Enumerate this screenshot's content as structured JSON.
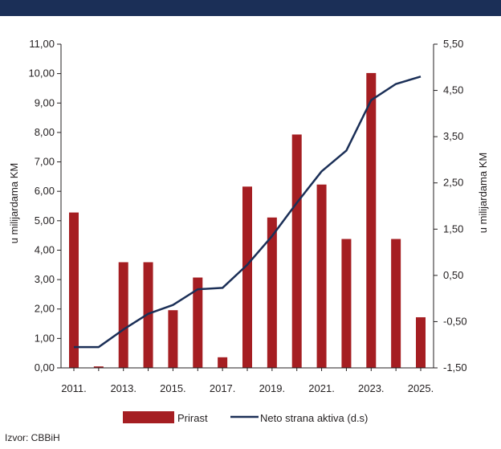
{
  "source": "Izvor: CBBiH",
  "colors": {
    "band": "#1b2f57",
    "bar": "#a51e22",
    "line": "#1b2f57",
    "axis": "#231f20"
  },
  "chart_data": {
    "type": "bar",
    "ylabel_left": "u milijardama  KM",
    "ylabel_right": "u milijardama KM",
    "ylim_left": [
      0,
      11
    ],
    "yticks_left": [
      "0,00",
      "1,00",
      "2,00",
      "3,00",
      "4,00",
      "5,00",
      "6,00",
      "7,00",
      "8,00",
      "9,00",
      "10,00",
      "11,00"
    ],
    "ylim_right": [
      -1.5,
      5.5
    ],
    "yticks_right": [
      "-1,50",
      "-0,50",
      "0,50",
      "1,50",
      "2,50",
      "3,50",
      "4,50",
      "5,50"
    ],
    "xtick_labels": [
      "2011.",
      "2013.",
      "2015.",
      "2017.",
      "2019.",
      "2021.",
      "2023.",
      "2025."
    ],
    "x": [
      2011,
      2012,
      2013,
      2014,
      2015,
      2016,
      2017,
      2018,
      2019,
      2020,
      2021,
      2022,
      2023,
      2024,
      2025
    ],
    "series": [
      {
        "name": "Prirast",
        "type": "bar",
        "axis": "left",
        "values": [
          5.28,
          0.05,
          3.59,
          3.59,
          1.96,
          3.07,
          0.36,
          6.16,
          5.11,
          7.93,
          6.23,
          4.38,
          10.02,
          4.38,
          1.72
        ]
      },
      {
        "name": "Neto strana aktiva (d.s)",
        "type": "line",
        "axis": "right",
        "values": [
          -1.05,
          -1.05,
          -0.67,
          -0.33,
          -0.14,
          0.2,
          0.23,
          0.73,
          1.35,
          2.07,
          2.75,
          3.2,
          4.29,
          4.64,
          4.8
        ]
      }
    ],
    "legend_position": "bottom"
  }
}
